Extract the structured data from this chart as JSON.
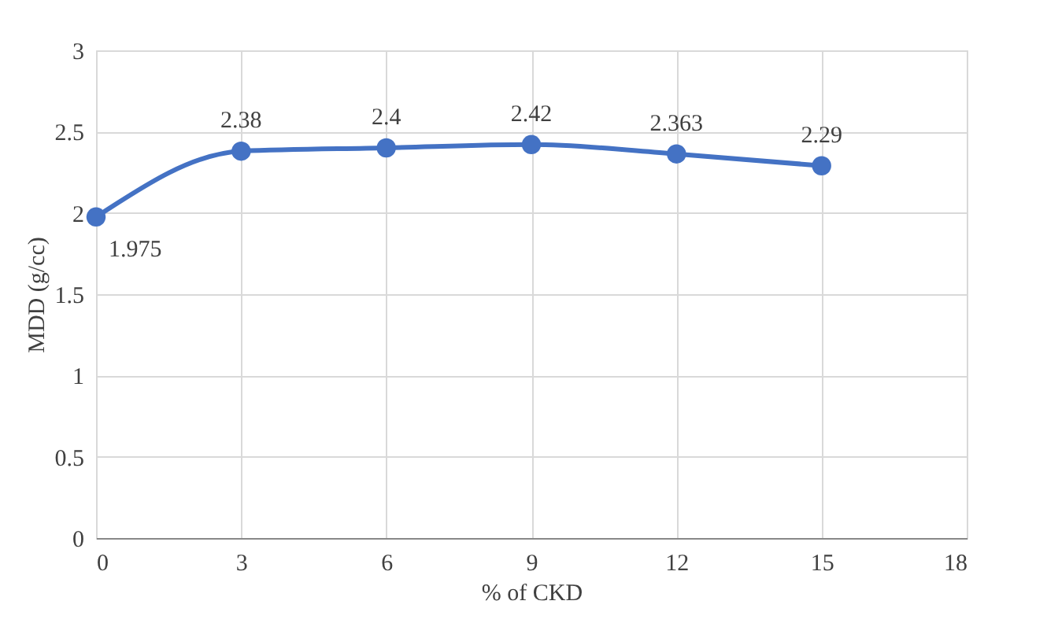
{
  "chart_data": {
    "type": "line",
    "xlabel": "% of CKD",
    "ylabel": "MDD (g/cc)",
    "x": [
      0,
      3,
      6,
      9,
      12,
      15
    ],
    "series": [
      {
        "color": "#4472c4",
        "values": [
          1.975,
          2.38,
          2.4,
          2.42,
          2.363,
          2.29
        ]
      }
    ],
    "xlim": [
      0,
      18
    ],
    "xticks": [
      0,
      3,
      6,
      9,
      12,
      15,
      18
    ],
    "ylim": [
      0,
      3
    ],
    "yticks": [
      0,
      0.5,
      1,
      1.5,
      2,
      2.5,
      3
    ],
    "grid": true,
    "marker": "circle",
    "line_style": "solid",
    "data_labels": true
  }
}
